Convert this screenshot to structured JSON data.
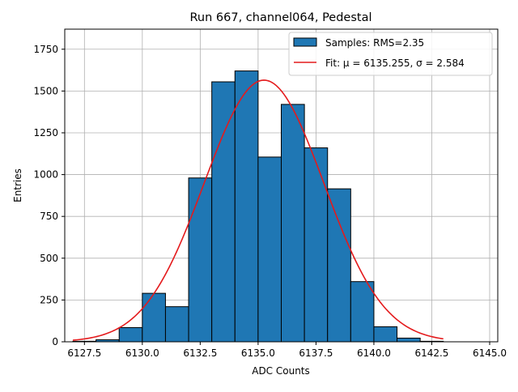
{
  "chart_data": {
    "type": "bar",
    "title": "Run 667, channel064, Pedestal",
    "xlabel": "ADC Counts",
    "ylabel": "Entries",
    "xlim": [
      6126.65,
      6145.35
    ],
    "ylim": [
      0,
      1870
    ],
    "xticks": [
      6127.5,
      6130.0,
      6132.5,
      6135.0,
      6137.5,
      6140.0,
      6142.5,
      6145.0
    ],
    "xtick_labels": [
      "6127.5",
      "6130.0",
      "6132.5",
      "6135.0",
      "6137.5",
      "6140.0",
      "6142.5",
      "6145.0"
    ],
    "yticks": [
      0,
      250,
      500,
      750,
      1000,
      1250,
      1500,
      1750
    ],
    "ytick_labels": [
      "0",
      "250",
      "500",
      "750",
      "1000",
      "1250",
      "1500",
      "1750"
    ],
    "grid": true,
    "legend_position": "top-right",
    "bar_color": "#1f77b4",
    "fit_color": "#e41a1c",
    "histogram": {
      "name": "Samples: RMS=2.35",
      "bins": [
        {
          "x0": 6127,
          "x1": 6128,
          "value": 3
        },
        {
          "x0": 6128,
          "x1": 6129,
          "value": 12
        },
        {
          "x0": 6129,
          "x1": 6130,
          "value": 85
        },
        {
          "x0": 6130,
          "x1": 6131,
          "value": 290
        },
        {
          "x0": 6131,
          "x1": 6132,
          "value": 210
        },
        {
          "x0": 6132,
          "x1": 6133,
          "value": 980
        },
        {
          "x0": 6133,
          "x1": 6134,
          "value": 1555
        },
        {
          "x0": 6134,
          "x1": 6135,
          "value": 1620
        },
        {
          "x0": 6135,
          "x1": 6136,
          "value": 1105
        },
        {
          "x0": 6136,
          "x1": 6137,
          "value": 1420
        },
        {
          "x0": 6137,
          "x1": 6138,
          "value": 1160
        },
        {
          "x0": 6138,
          "x1": 6139,
          "value": 915
        },
        {
          "x0": 6139,
          "x1": 6140,
          "value": 360
        },
        {
          "x0": 6140,
          "x1": 6141,
          "value": 90
        },
        {
          "x0": 6141,
          "x1": 6142,
          "value": 22
        },
        {
          "x0": 6142,
          "x1": 6143,
          "value": 3
        }
      ]
    },
    "fit": {
      "name": "Fit: μ = 6135.255, σ = 2.584",
      "mu": 6135.255,
      "sigma": 2.584,
      "amplitude": 1565,
      "x_range": [
        6127,
        6143
      ]
    }
  }
}
